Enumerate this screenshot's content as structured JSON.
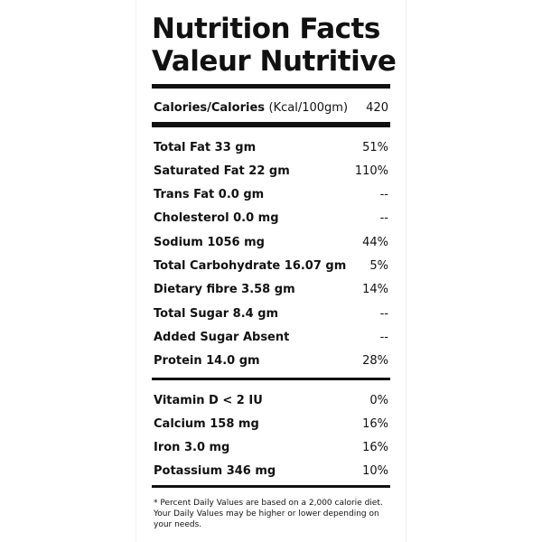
{
  "header": {
    "title": [
      "Nutrition Facts",
      "Valeur Nutritive"
    ]
  },
  "calories": {
    "label": "Calories/Calories",
    "unit": "(Kcal/100gm)",
    "value": "420"
  },
  "groups": [
    [
      {
        "name": "Total Fat 33 gm",
        "dv": "51%"
      },
      {
        "name": "Saturated Fat 22 gm",
        "dv": "110%"
      },
      {
        "name": "Trans Fat 0.0 gm",
        "dv": "--"
      },
      {
        "name": "Cholesterol 0.0 mg",
        "dv": "--"
      },
      {
        "name": "Sodium 1056 mg",
        "dv": "44%"
      },
      {
        "name": "Total Carbohydrate 16.07 gm",
        "dv": "5%"
      },
      {
        "name": "Dietary fibre 3.58 gm",
        "dv": "14%"
      },
      {
        "name": "Total Sugar 8.4 gm",
        "dv": "--"
      },
      {
        "name": "Added Sugar Absent",
        "dv": "--"
      },
      {
        "name": "Protein 14.0 gm",
        "dv": "28%"
      }
    ],
    [
      {
        "name": "Vitamin D < 2 IU",
        "dv": "0%"
      },
      {
        "name": "Calcium 158 mg",
        "dv": "16%"
      },
      {
        "name": "Iron 3.0 mg",
        "dv": "16%"
      },
      {
        "name": "Potassium 346 mg",
        "dv": "10%"
      }
    ]
  ],
  "footnote": "* Percent Daily Values are based on a 2,000 calorie diet. Your Daily Values may be higher or lower depending on your needs."
}
